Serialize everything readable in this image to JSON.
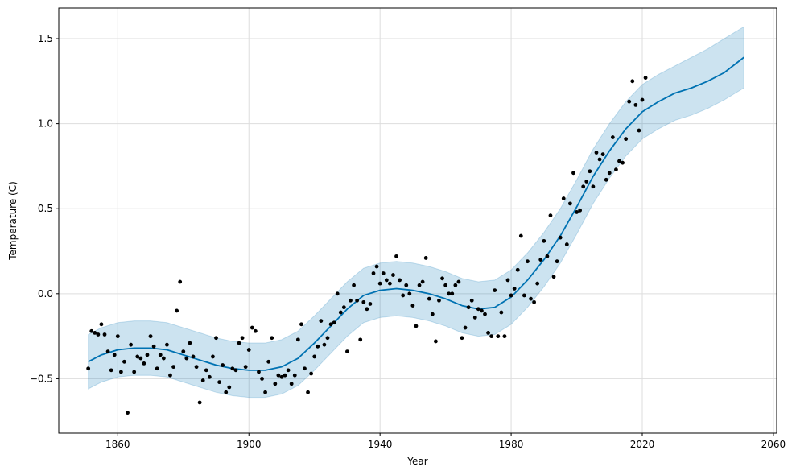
{
  "chart_data": {
    "type": "scatter",
    "title": "",
    "xlabel": "Year",
    "ylabel": "Temperature (C)",
    "xlim": [
      1842,
      2061
    ],
    "ylim": [
      -0.82,
      1.68
    ],
    "grid": true,
    "x_ticks": [
      1860,
      1900,
      1940,
      1980,
      2020,
      2060
    ],
    "y_ticks": [
      -0.5,
      0.0,
      0.5,
      1.0,
      1.5
    ],
    "x_tick_labels": [
      "1860",
      "1900",
      "1940",
      "1980",
      "2020",
      "2060"
    ],
    "y_tick_labels": [
      "−0.5",
      "0.0",
      "0.5",
      "1.0",
      "1.5"
    ],
    "colors": {
      "observed": "#000000",
      "forecast_line": "#0072b2",
      "uncertainty_band": "#0072b2",
      "grid": "#dddddd"
    },
    "observed": {
      "x": [
        1851,
        1852,
        1853,
        1854,
        1855,
        1856,
        1857,
        1858,
        1859,
        1860,
        1861,
        1862,
        1863,
        1864,
        1865,
        1866,
        1867,
        1868,
        1869,
        1870,
        1871,
        1872,
        1873,
        1874,
        1875,
        1876,
        1877,
        1878,
        1879,
        1880,
        1881,
        1882,
        1883,
        1884,
        1885,
        1886,
        1887,
        1888,
        1889,
        1890,
        1891,
        1892,
        1893,
        1894,
        1895,
        1896,
        1897,
        1898,
        1899,
        1900,
        1901,
        1902,
        1903,
        1904,
        1905,
        1906,
        1907,
        1908,
        1909,
        1910,
        1911,
        1912,
        1913,
        1914,
        1915,
        1916,
        1917,
        1918,
        1919,
        1920,
        1921,
        1922,
        1923,
        1924,
        1925,
        1926,
        1927,
        1928,
        1929,
        1930,
        1931,
        1932,
        1933,
        1934,
        1935,
        1936,
        1937,
        1938,
        1939,
        1940,
        1941,
        1942,
        1943,
        1944,
        1945,
        1946,
        1947,
        1948,
        1949,
        1950,
        1951,
        1952,
        1953,
        1954,
        1955,
        1956,
        1957,
        1958,
        1959,
        1960,
        1961,
        1962,
        1963,
        1964,
        1965,
        1966,
        1967,
        1968,
        1969,
        1970,
        1971,
        1972,
        1973,
        1974,
        1975,
        1976,
        1977,
        1978,
        1979,
        1980,
        1981,
        1982,
        1983,
        1984,
        1985,
        1986,
        1987,
        1988,
        1989,
        1990,
        1991,
        1992,
        1993,
        1994,
        1995,
        1996,
        1997,
        1998,
        1999,
        2000,
        2001,
        2002,
        2003,
        2004,
        2005,
        2006,
        2007,
        2008,
        2009,
        2010,
        2011,
        2012,
        2013,
        2014,
        2015,
        2016,
        2017,
        2018,
        2019,
        2020,
        2021
      ],
      "y": [
        -0.44,
        -0.22,
        -0.23,
        -0.24,
        -0.18,
        -0.24,
        -0.34,
        -0.45,
        -0.36,
        -0.25,
        -0.46,
        -0.4,
        -0.7,
        -0.3,
        -0.46,
        -0.37,
        -0.38,
        -0.41,
        -0.36,
        -0.25,
        -0.31,
        -0.44,
        -0.36,
        -0.38,
        -0.3,
        -0.48,
        -0.43,
        -0.1,
        0.07,
        -0.34,
        -0.38,
        -0.29,
        -0.37,
        -0.43,
        -0.64,
        -0.51,
        -0.45,
        -0.49,
        -0.37,
        -0.26,
        -0.52,
        -0.42,
        -0.58,
        -0.55,
        -0.44,
        -0.45,
        -0.29,
        -0.26,
        -0.43,
        -0.33,
        -0.2,
        -0.22,
        -0.46,
        -0.5,
        -0.58,
        -0.4,
        -0.26,
        -0.53,
        -0.48,
        -0.49,
        -0.48,
        -0.45,
        -0.53,
        -0.48,
        -0.27,
        -0.18,
        -0.44,
        -0.58,
        -0.47,
        -0.37,
        -0.31,
        -0.16,
        -0.3,
        -0.26,
        -0.18,
        -0.17,
        0.0,
        -0.11,
        -0.08,
        -0.34,
        -0.04,
        0.05,
        -0.04,
        -0.27,
        -0.05,
        -0.09,
        -0.06,
        0.12,
        0.16,
        0.06,
        0.12,
        0.08,
        0.06,
        0.11,
        0.22,
        0.08,
        -0.01,
        0.05,
        0.0,
        -0.07,
        -0.19,
        0.05,
        0.07,
        0.21,
        -0.03,
        -0.12,
        -0.28,
        -0.04,
        0.09,
        0.05,
        0.0,
        0.0,
        0.05,
        0.07,
        -0.26,
        -0.2,
        -0.08,
        -0.04,
        -0.14,
        -0.09,
        -0.1,
        -0.12,
        -0.23,
        -0.25,
        0.02,
        -0.25,
        -0.11,
        -0.25,
        0.08,
        -0.01,
        0.03,
        0.14,
        0.34,
        -0.01,
        0.19,
        -0.03,
        -0.05,
        0.06,
        0.2,
        0.31,
        0.22,
        0.46,
        0.1,
        0.19,
        0.33,
        0.56,
        0.29,
        0.53,
        0.71,
        0.48,
        0.49,
        0.63,
        0.66,
        0.72,
        0.63,
        0.83,
        0.79,
        0.82,
        0.67,
        0.71,
        0.92,
        0.73,
        0.78,
        0.77,
        0.91,
        1.13,
        1.25,
        1.11,
        0.96,
        1.14,
        1.27
      ]
    },
    "forecast": {
      "x": [
        1851,
        1855,
        1860,
        1865,
        1870,
        1875,
        1880,
        1885,
        1890,
        1895,
        1900,
        1905,
        1910,
        1915,
        1920,
        1925,
        1930,
        1935,
        1940,
        1945,
        1950,
        1955,
        1960,
        1965,
        1970,
        1975,
        1980,
        1985,
        1990,
        1995,
        2000,
        2005,
        2010,
        2015,
        2020,
        2025,
        2030,
        2035,
        2040,
        2045,
        2051
      ],
      "yhat": [
        -0.4,
        -0.36,
        -0.33,
        -0.32,
        -0.32,
        -0.33,
        -0.36,
        -0.39,
        -0.42,
        -0.44,
        -0.45,
        -0.45,
        -0.43,
        -0.38,
        -0.29,
        -0.19,
        -0.09,
        -0.01,
        0.02,
        0.03,
        0.02,
        0.0,
        -0.03,
        -0.07,
        -0.09,
        -0.08,
        -0.02,
        0.08,
        0.2,
        0.34,
        0.51,
        0.69,
        0.84,
        0.97,
        1.07,
        1.13,
        1.18,
        1.21,
        1.25,
        1.3,
        1.39
      ],
      "yhat_lower": [
        -0.56,
        -0.52,
        -0.49,
        -0.48,
        -0.48,
        -0.49,
        -0.52,
        -0.55,
        -0.58,
        -0.6,
        -0.61,
        -0.61,
        -0.59,
        -0.54,
        -0.45,
        -0.35,
        -0.25,
        -0.17,
        -0.14,
        -0.13,
        -0.14,
        -0.16,
        -0.19,
        -0.23,
        -0.25,
        -0.24,
        -0.18,
        -0.08,
        0.04,
        0.18,
        0.35,
        0.53,
        0.68,
        0.81,
        0.91,
        0.97,
        1.02,
        1.05,
        1.09,
        1.14,
        1.21
      ],
      "yhat_upper": [
        -0.24,
        -0.2,
        -0.17,
        -0.16,
        -0.16,
        -0.17,
        -0.2,
        -0.23,
        -0.26,
        -0.28,
        -0.29,
        -0.29,
        -0.27,
        -0.22,
        -0.13,
        -0.03,
        0.07,
        0.15,
        0.18,
        0.19,
        0.18,
        0.16,
        0.13,
        0.09,
        0.07,
        0.08,
        0.14,
        0.24,
        0.36,
        0.5,
        0.67,
        0.85,
        1.0,
        1.13,
        1.23,
        1.29,
        1.34,
        1.39,
        1.44,
        1.5,
        1.57
      ]
    }
  }
}
